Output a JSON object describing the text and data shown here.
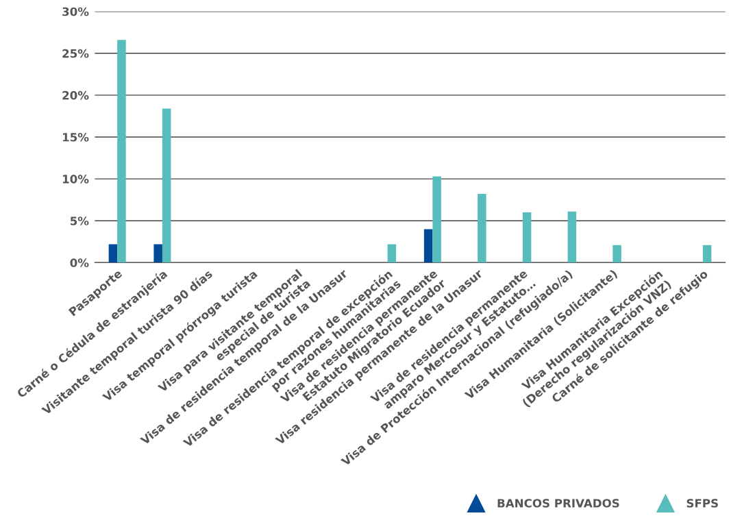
{
  "chart_data": {
    "type": "bar",
    "categories": [
      "Pasaporte",
      "Carné o Cédula de estranjería",
      "Visitante temporal turista 90 días",
      "Visa temporal prórroga turista",
      "Visa para visitante temporal\nespecial de turista",
      "Visa de residencia temporal de la Unasur",
      "Visa de residencia temporal de excepción\npor razones humanitarias",
      "Visa de residencia permanente\nEstatuto Migratorio Ecuador",
      "Visa residencia permanente de la Unasur",
      "Visa de residencia permanente\namparo Mercosur y Estatuto…",
      "Visa de Protección Internacional (refugiado/a)",
      "Visa Humanitaria (Solicitante)",
      "Visa Humanitaria Excepción\n(Derecho regularización VNZ)",
      "Carné de solicitante de refugio"
    ],
    "series": [
      {
        "name": "BANCOS PRIVADOS",
        "color": "#004a98",
        "values": [
          2.2,
          2.2,
          0,
          0,
          0,
          0,
          0,
          4.0,
          0,
          0,
          0,
          0,
          0,
          0
        ]
      },
      {
        "name": "SFPS",
        "color": "#56bcbc",
        "values": [
          26.6,
          18.4,
          0,
          0,
          0,
          0,
          2.2,
          10.3,
          8.2,
          6.0,
          6.1,
          2.1,
          0,
          2.1
        ]
      }
    ],
    "ylim": [
      0,
      30
    ],
    "yticks": [
      {
        "value": 0,
        "label": "0%"
      },
      {
        "value": 5,
        "label": "5%"
      },
      {
        "value": 10,
        "label": "10%"
      },
      {
        "value": 15,
        "label": "15%"
      },
      {
        "value": 20,
        "label": "20%"
      },
      {
        "value": 25,
        "label": "25%"
      },
      {
        "value": 30,
        "label": "30%"
      }
    ],
    "grid": "y",
    "legend": "bottom right",
    "marker": "triangle"
  }
}
